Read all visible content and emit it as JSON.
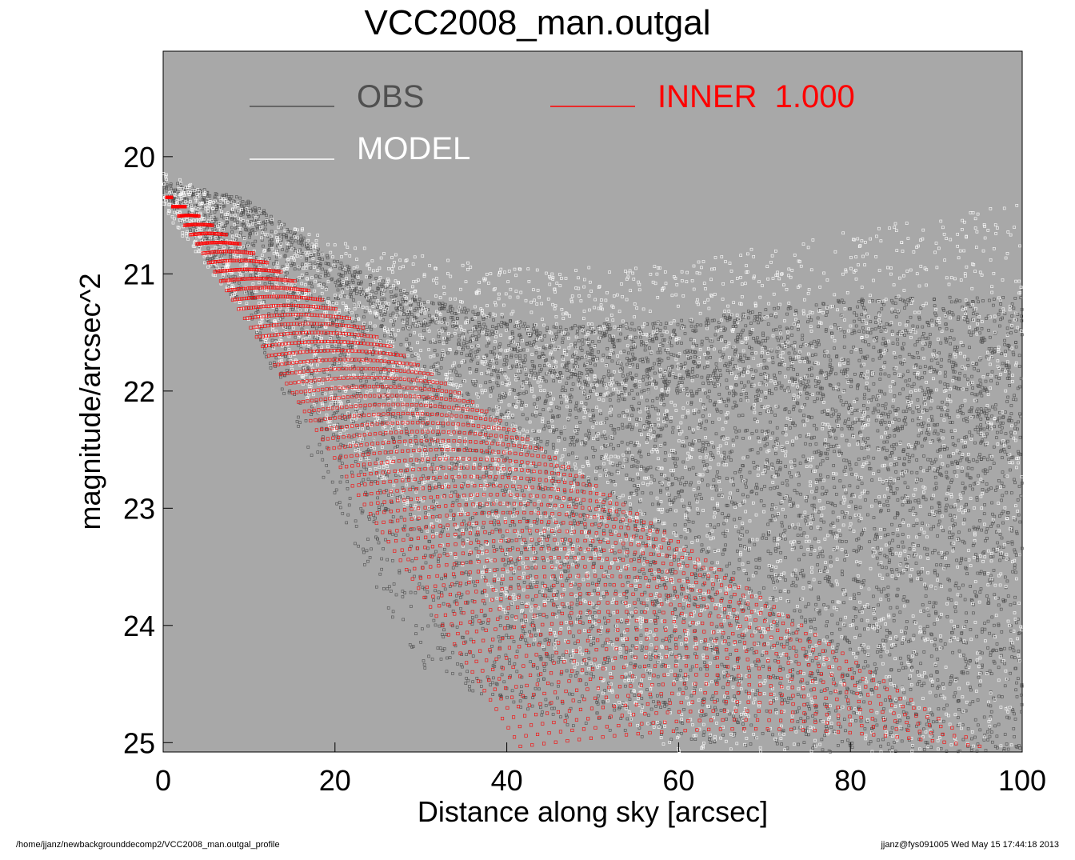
{
  "title": "VCC2008_man.outgal",
  "footer": {
    "left": "/home/jjanz/newbackgrounddecomp2/VCC2008_man.outgal_profile",
    "right": "jjanz@fys091005  Wed May 15 17:44:18 2013"
  },
  "colors": {
    "plot_background": "#a8a8a8",
    "obs": "#505050",
    "model": "#ffffff",
    "inner": "#ff0000"
  },
  "chart_data": {
    "type": "scatter",
    "title": "VCC2008_man.outgal",
    "xlabel": "Distance along sky [arcsec]",
    "ylabel": "magnitude/arcsec^2",
    "xlim": [
      0,
      100
    ],
    "ylim": [
      19.1,
      25.08
    ],
    "y_inverted": true,
    "xticks": [
      0,
      20,
      40,
      60,
      80,
      100
    ],
    "yticks": [
      20,
      21,
      22,
      23,
      24,
      25
    ],
    "grid": false,
    "legend_position": "top",
    "legend": [
      {
        "label": "OBS",
        "color": "#505050"
      },
      {
        "label": "MODEL",
        "color": "#ffffff"
      },
      {
        "label": "INNER  1.000",
        "color": "#ff0000"
      }
    ],
    "series": [
      {
        "name": "OBS",
        "style": "points",
        "description_points": [
          [
            0,
            20.25
          ],
          [
            10,
            20.5
          ],
          [
            20,
            21.1
          ],
          [
            30,
            21.5
          ],
          [
            45,
            21.9
          ],
          [
            60,
            22.0
          ],
          [
            80,
            22.1
          ],
          [
            100,
            22.2
          ]
        ],
        "spread_above": [
          [
            0,
            0.05
          ],
          [
            30,
            0.3
          ],
          [
            60,
            0.6
          ],
          [
            80,
            0.9
          ],
          [
            100,
            1.0
          ]
        ],
        "spread_below": [
          [
            0,
            0.1
          ],
          [
            10,
            0.9
          ],
          [
            20,
            1.9
          ],
          [
            30,
            2.9
          ],
          [
            40,
            2.9
          ],
          [
            60,
            3.0
          ],
          [
            100,
            3.0
          ]
        ]
      },
      {
        "name": "MODEL",
        "style": "points",
        "description_points": [
          [
            0,
            20.25
          ],
          [
            20,
            21.3
          ],
          [
            40,
            22.0
          ],
          [
            60,
            22.4
          ],
          [
            100,
            22.8
          ]
        ]
      },
      {
        "name": "INNER  1.000",
        "style": "points",
        "upper_edge": [
          [
            0,
            20.3
          ],
          [
            96,
            25.08
          ]
        ],
        "lower_edge": [
          [
            0,
            20.3
          ],
          [
            42,
            25.08
          ]
        ]
      }
    ]
  }
}
